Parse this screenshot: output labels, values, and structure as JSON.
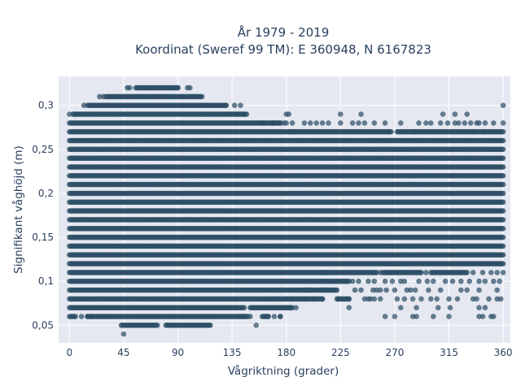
{
  "chart_data": {
    "type": "scatter",
    "title": "År 1979 - 2019",
    "subtitle": "Koordinat (Sweref 99 TM): E 360948, N 6167823",
    "xlabel": "Vågriktning (grader)",
    "ylabel": "Signifikant våghöjd (m)",
    "xlim": [
      -9,
      366
    ],
    "ylim": [
      0.03,
      0.333
    ],
    "xticks": [
      0,
      45,
      90,
      135,
      180,
      225,
      270,
      315,
      360
    ],
    "xtick_labels": [
      "0",
      "45",
      "90",
      "135",
      "180",
      "225",
      "270",
      "315",
      "360"
    ],
    "yticks": [
      0.05,
      0.1,
      0.15,
      0.2,
      0.25,
      0.3
    ],
    "ytick_labels": [
      "0,05",
      "0,1",
      "0,15",
      "0,2",
      "0,25",
      "0,3"
    ],
    "grid": true,
    "legend": "none",
    "marker_color": "#2e4f66",
    "background_color": "#e5e8f0",
    "value_step": 0.01,
    "dense_bands": [
      {
        "y": 0.04,
        "x": [
          [
            45,
            45
          ]
        ]
      },
      {
        "y": 0.05,
        "x": [
          [
            43,
            73
          ],
          [
            80,
            117
          ],
          [
            155,
            155
          ]
        ]
      },
      {
        "y": 0.06,
        "x": [
          [
            0,
            5
          ],
          [
            10,
            10
          ],
          [
            15,
            148
          ],
          [
            160,
            165
          ],
          [
            175,
            175
          ]
        ]
      },
      {
        "y": 0.07,
        "x": [
          [
            0,
            145
          ],
          [
            150,
            185
          ]
        ]
      },
      {
        "y": 0.08,
        "x": [
          [
            0,
            210
          ],
          [
            222,
            232
          ]
        ]
      },
      {
        "y": 0.09,
        "x": [
          [
            0,
            222
          ]
        ]
      },
      {
        "y": 0.1,
        "x": [
          [
            0,
            232
          ]
        ]
      },
      {
        "y": 0.11,
        "x": [
          [
            0,
            255
          ],
          [
            260,
            292
          ],
          [
            300,
            330
          ]
        ]
      },
      {
        "y": 0.12,
        "x": [
          [
            0,
            360
          ]
        ]
      },
      {
        "y": 0.13,
        "x": [
          [
            0,
            360
          ]
        ]
      },
      {
        "y": 0.14,
        "x": [
          [
            0,
            360
          ]
        ]
      },
      {
        "y": 0.15,
        "x": [
          [
            0,
            360
          ]
        ]
      },
      {
        "y": 0.16,
        "x": [
          [
            0,
            360
          ]
        ]
      },
      {
        "y": 0.17,
        "x": [
          [
            0,
            360
          ]
        ]
      },
      {
        "y": 0.18,
        "x": [
          [
            0,
            360
          ]
        ]
      },
      {
        "y": 0.19,
        "x": [
          [
            0,
            360
          ]
        ]
      },
      {
        "y": 0.2,
        "x": [
          [
            0,
            360
          ]
        ]
      },
      {
        "y": 0.21,
        "x": [
          [
            0,
            360
          ]
        ]
      },
      {
        "y": 0.22,
        "x": [
          [
            0,
            360
          ]
        ]
      },
      {
        "y": 0.23,
        "x": [
          [
            0,
            360
          ]
        ]
      },
      {
        "y": 0.24,
        "x": [
          [
            0,
            360
          ]
        ]
      },
      {
        "y": 0.25,
        "x": [
          [
            0,
            360
          ]
        ]
      },
      {
        "y": 0.26,
        "x": [
          [
            0,
            360
          ]
        ]
      },
      {
        "y": 0.27,
        "x": [
          [
            0,
            267
          ],
          [
            272,
            360
          ]
        ]
      },
      {
        "y": 0.28,
        "x": [
          [
            0,
            175
          ]
        ]
      },
      {
        "y": 0.29,
        "x": [
          [
            3,
            147
          ]
        ]
      },
      {
        "y": 0.3,
        "x": [
          [
            15,
            130
          ]
        ]
      },
      {
        "y": 0.31,
        "x": [
          [
            30,
            110
          ]
        ]
      },
      {
        "y": 0.32,
        "x": [
          [
            55,
            90
          ]
        ]
      }
    ],
    "sparse_points": [
      [
        15,
        0.06
      ],
      [
        18,
        0.06
      ],
      [
        145,
        0.06
      ],
      [
        143,
        0.06
      ],
      [
        150,
        0.06
      ],
      [
        165,
        0.06
      ],
      [
        170,
        0.06
      ],
      [
        175,
        0.06
      ],
      [
        180,
        0.07
      ],
      [
        183,
        0.07
      ],
      [
        188,
        0.07
      ],
      [
        168,
        0.08
      ],
      [
        180,
        0.08
      ],
      [
        185,
        0.08
      ],
      [
        195,
        0.08
      ],
      [
        203,
        0.08
      ],
      [
        210,
        0.08
      ],
      [
        223,
        0.08
      ],
      [
        232,
        0.08
      ],
      [
        250,
        0.08
      ],
      [
        253,
        0.08
      ],
      [
        258,
        0.08
      ],
      [
        275,
        0.07
      ],
      [
        288,
        0.07
      ],
      [
        306,
        0.07
      ],
      [
        316,
        0.07
      ],
      [
        340,
        0.07
      ],
      [
        345,
        0.07
      ],
      [
        262,
        0.06
      ],
      [
        270,
        0.06
      ],
      [
        285,
        0.06
      ],
      [
        288,
        0.06
      ],
      [
        302,
        0.06
      ],
      [
        315,
        0.06
      ],
      [
        340,
        0.06
      ],
      [
        343,
        0.06
      ],
      [
        350,
        0.06
      ],
      [
        352,
        0.06
      ],
      [
        195,
        0.09
      ],
      [
        200,
        0.09
      ],
      [
        210,
        0.09
      ],
      [
        212,
        0.09
      ],
      [
        220,
        0.09
      ],
      [
        237,
        0.09
      ],
      [
        242,
        0.09
      ],
      [
        255,
        0.09
      ],
      [
        258,
        0.09
      ],
      [
        263,
        0.09
      ],
      [
        280,
        0.09
      ],
      [
        283,
        0.09
      ],
      [
        298,
        0.09
      ],
      [
        308,
        0.09
      ],
      [
        325,
        0.09
      ],
      [
        330,
        0.09
      ],
      [
        340,
        0.09
      ],
      [
        355,
        0.09
      ],
      [
        252,
        0.09
      ],
      [
        270,
        0.09
      ],
      [
        287,
        0.09
      ],
      [
        235,
        0.1
      ],
      [
        240,
        0.1
      ],
      [
        248,
        0.1
      ],
      [
        253,
        0.1
      ],
      [
        262,
        0.1
      ],
      [
        268,
        0.1
      ],
      [
        275,
        0.1
      ],
      [
        278,
        0.1
      ],
      [
        290,
        0.1
      ],
      [
        297,
        0.1
      ],
      [
        302,
        0.1
      ],
      [
        312,
        0.1
      ],
      [
        318,
        0.1
      ],
      [
        325,
        0.1
      ],
      [
        332,
        0.1
      ],
      [
        340,
        0.1
      ],
      [
        345,
        0.1
      ],
      [
        352,
        0.1
      ],
      [
        357,
        0.1
      ],
      [
        348,
        0.08
      ],
      [
        355,
        0.08
      ],
      [
        358,
        0.08
      ],
      [
        335,
        0.08
      ],
      [
        338,
        0.08
      ],
      [
        315,
        0.08
      ],
      [
        322,
        0.08
      ],
      [
        305,
        0.08
      ],
      [
        300,
        0.08
      ],
      [
        292,
        0.08
      ],
      [
        285,
        0.08
      ],
      [
        278,
        0.08
      ],
      [
        272,
        0.08
      ],
      [
        232,
        0.07
      ],
      [
        245,
        0.08
      ],
      [
        248,
        0.08
      ],
      [
        343,
        0.11
      ],
      [
        350,
        0.11
      ],
      [
        355,
        0.11
      ],
      [
        335,
        0.11
      ],
      [
        360,
        0.11
      ],
      [
        296,
        0.11
      ],
      [
        258,
        0.11
      ],
      [
        210,
        0.11
      ],
      [
        212,
        0.11
      ],
      [
        265,
        0.12
      ],
      [
        270,
        0.12
      ],
      [
        275,
        0.12
      ],
      [
        168,
        0.28
      ],
      [
        180,
        0.28
      ],
      [
        185,
        0.28
      ],
      [
        195,
        0.28
      ],
      [
        200,
        0.28
      ],
      [
        205,
        0.28
      ],
      [
        210,
        0.28
      ],
      [
        215,
        0.28
      ],
      [
        225,
        0.28
      ],
      [
        235,
        0.28
      ],
      [
        240,
        0.28
      ],
      [
        245,
        0.28
      ],
      [
        253,
        0.28
      ],
      [
        262,
        0.28
      ],
      [
        275,
        0.28
      ],
      [
        290,
        0.28
      ],
      [
        296,
        0.28
      ],
      [
        300,
        0.28
      ],
      [
        308,
        0.28
      ],
      [
        314,
        0.28
      ],
      [
        320,
        0.28
      ],
      [
        323,
        0.28
      ],
      [
        328,
        0.28
      ],
      [
        333,
        0.28
      ],
      [
        338,
        0.28
      ],
      [
        340,
        0.28
      ],
      [
        345,
        0.28
      ],
      [
        352,
        0.28
      ],
      [
        360,
        0.28
      ],
      [
        183,
        0.27
      ],
      [
        186,
        0.27
      ],
      [
        265,
        0.27
      ],
      [
        285,
        0.27
      ],
      [
        287,
        0.27
      ],
      [
        330,
        0.27
      ],
      [
        335,
        0.27
      ],
      [
        345,
        0.27
      ],
      [
        160,
        0.28
      ],
      [
        170,
        0.28
      ],
      [
        175,
        0.28
      ],
      [
        178,
        0.28
      ],
      [
        180,
        0.29
      ],
      [
        182,
        0.29
      ],
      [
        225,
        0.29
      ],
      [
        242,
        0.29
      ],
      [
        310,
        0.29
      ],
      [
        320,
        0.29
      ],
      [
        330,
        0.29
      ],
      [
        360,
        0.3
      ],
      [
        140,
        0.29
      ],
      [
        145,
        0.29
      ],
      [
        130,
        0.3
      ],
      [
        137,
        0.3
      ],
      [
        142,
        0.3
      ],
      [
        0,
        0.29
      ],
      [
        5,
        0.29
      ],
      [
        18,
        0.3
      ],
      [
        12,
        0.3
      ],
      [
        25,
        0.31
      ],
      [
        28,
        0.31
      ],
      [
        90,
        0.32
      ],
      [
        98,
        0.32
      ],
      [
        100,
        0.32
      ],
      [
        48,
        0.32
      ],
      [
        50,
        0.32
      ]
    ]
  }
}
